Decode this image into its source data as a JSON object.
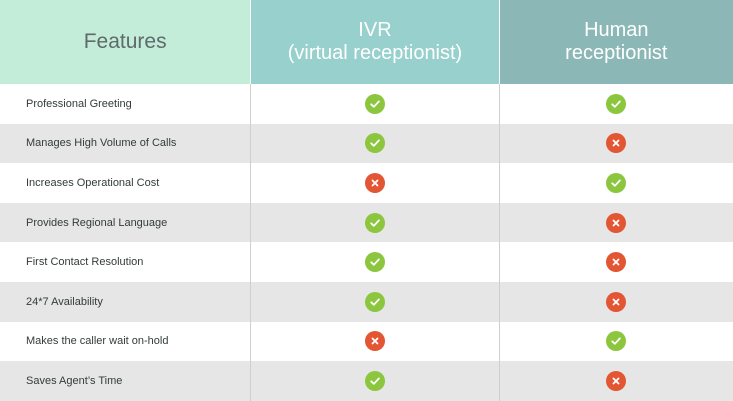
{
  "header": {
    "features": "Features",
    "ivr_line1": "IVR",
    "ivr_line2": "(virtual receptionist)",
    "human_line1": "Human",
    "human_line2": "receptionist"
  },
  "colors": {
    "yes": "#8cc63e",
    "no": "#e25634"
  },
  "rows": [
    {
      "feature": "Professional Greeting",
      "ivr": "yes",
      "human": "yes"
    },
    {
      "feature": "Manages High Volume of Calls",
      "ivr": "yes",
      "human": "no"
    },
    {
      "feature": "Increases Operational Cost",
      "ivr": "no",
      "human": "yes"
    },
    {
      "feature": "Provides Regional Language",
      "ivr": "yes",
      "human": "no"
    },
    {
      "feature": "First Contact Resolution",
      "ivr": "yes",
      "human": "no"
    },
    {
      "feature": "24*7 Availability",
      "ivr": "yes",
      "human": "no"
    },
    {
      "feature": "Makes the caller wait on-hold",
      "ivr": "no",
      "human": "yes"
    },
    {
      "feature": "Saves Agent’s Time",
      "ivr": "yes",
      "human": "no"
    }
  ]
}
